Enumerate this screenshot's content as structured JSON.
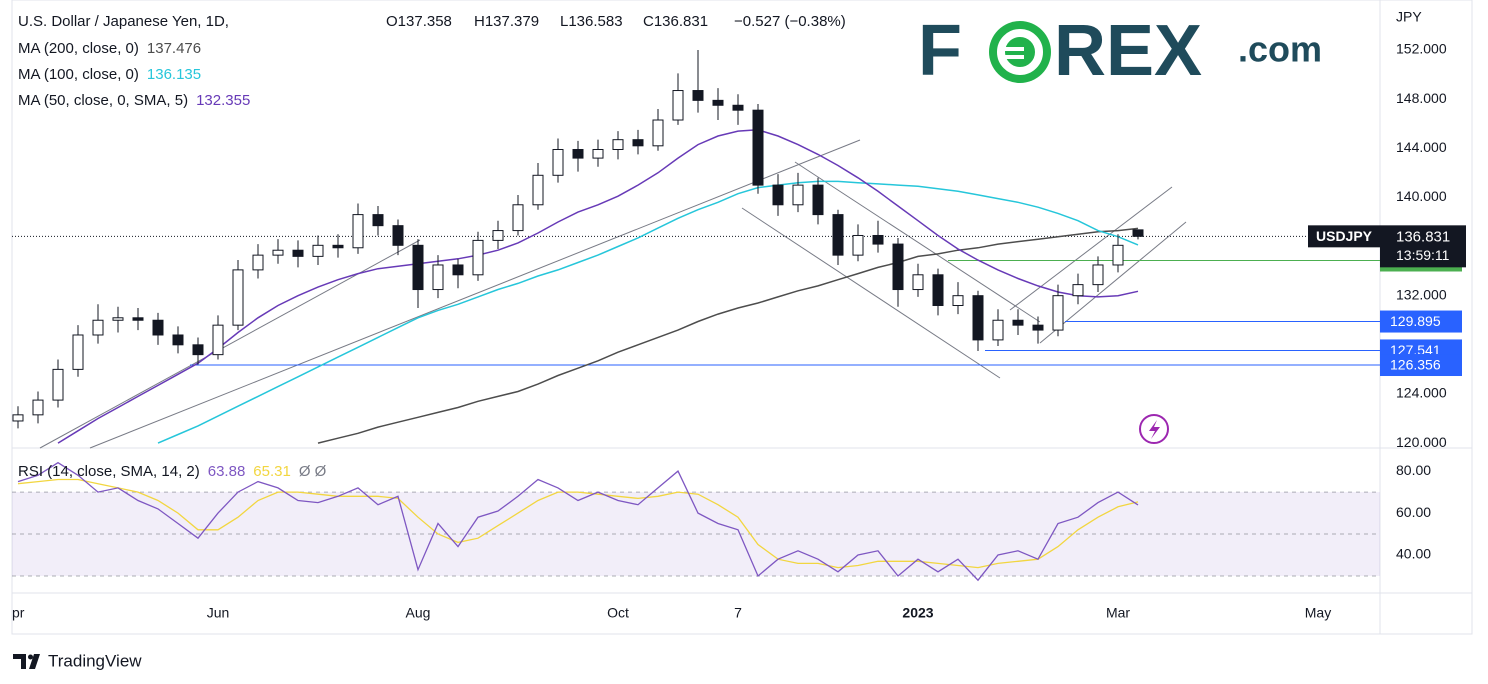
{
  "header": {
    "title": "U.S. Dollar / Japanese Yen, 1D, ",
    "open": "O137.358",
    "high": "H137.379",
    "low": "L136.583",
    "close": "C136.831",
    "change": "−0.527 (−0.38%)"
  },
  "logo": {
    "left": "F",
    "right": "REX",
    "suffix": ".com"
  },
  "branding": "TradingView",
  "chart_data": [
    {
      "type": "candlestick",
      "currency": "JPY",
      "symbol": "USDJPY",
      "countdown": "13:59:11",
      "categories": [
        "pr",
        null,
        null,
        null,
        null,
        null,
        null,
        null,
        null,
        null,
        "Jun",
        null,
        null,
        null,
        null,
        null,
        null,
        null,
        null,
        null,
        "Aug",
        null,
        null,
        null,
        null,
        null,
        null,
        null,
        null,
        null,
        "Oct",
        null,
        null,
        null,
        null,
        null,
        "7",
        null,
        null,
        null,
        null,
        null,
        null,
        null,
        null,
        "2023",
        null,
        null,
        null,
        null,
        null,
        null,
        null,
        null,
        null,
        "Mar",
        null,
        null,
        null,
        null,
        null,
        null,
        null,
        null,
        null,
        "May"
      ],
      "open": [
        121.8,
        122.3,
        123.5,
        126.0,
        128.8,
        130.0,
        130.2,
        130.0,
        128.8,
        128.0,
        127.2,
        129.6,
        134.1,
        135.3,
        135.7,
        135.2,
        136.1,
        135.9,
        138.6,
        137.7,
        136.1,
        132.5,
        134.5,
        133.7,
        136.5,
        137.3,
        139.4,
        141.8,
        143.9,
        143.2,
        143.9,
        144.7,
        144.2,
        146.3,
        148.7,
        147.9,
        147.5,
        147.1,
        141.0,
        139.4,
        141.0,
        138.6,
        135.3,
        136.9,
        136.2,
        132.5,
        133.7,
        131.2,
        132.0,
        128.4,
        130.0,
        129.6,
        129.2,
        132.0,
        132.9,
        134.5,
        137.358,
        null,
        null,
        null,
        null,
        null,
        null,
        null,
        null,
        null
      ],
      "high": [
        123.0,
        124.2,
        126.8,
        129.6,
        131.3,
        131.1,
        131.0,
        130.6,
        129.5,
        128.6,
        130.4,
        134.9,
        136.2,
        136.6,
        136.5,
        136.9,
        137.0,
        139.5,
        139.3,
        138.2,
        136.6,
        135.3,
        135.0,
        137.2,
        138.1,
        140.2,
        142.8,
        144.8,
        144.6,
        144.7,
        145.4,
        145.5,
        147.2,
        150.1,
        152.0,
        148.9,
        148.4,
        147.6,
        141.9,
        142.0,
        141.6,
        139.0,
        137.8,
        138.1,
        136.7,
        134.6,
        134.2,
        133.1,
        132.4,
        130.9,
        130.9,
        130.3,
        132.9,
        133.8,
        135.2,
        137.0,
        137.379,
        null,
        null,
        null,
        null,
        null,
        null,
        null,
        null,
        null
      ],
      "low": [
        121.2,
        121.6,
        122.9,
        125.4,
        128.1,
        129.0,
        129.2,
        128.0,
        127.3,
        126.4,
        126.8,
        129.2,
        133.4,
        134.6,
        134.3,
        134.5,
        135.1,
        135.4,
        136.9,
        135.3,
        131.0,
        131.8,
        132.6,
        133.2,
        135.8,
        136.9,
        139.0,
        141.2,
        142.1,
        142.5,
        143.1,
        143.5,
        143.8,
        145.9,
        146.9,
        146.3,
        145.9,
        140.3,
        138.5,
        138.8,
        137.8,
        134.5,
        134.8,
        135.5,
        131.1,
        131.9,
        130.4,
        130.5,
        127.5,
        127.9,
        128.8,
        128.1,
        128.7,
        131.3,
        132.3,
        133.9,
        136.583,
        null,
        null,
        null,
        null,
        null,
        null,
        null,
        null,
        null
      ],
      "close": [
        122.3,
        123.5,
        126.0,
        128.8,
        130.0,
        130.2,
        130.0,
        128.8,
        128.0,
        127.2,
        129.6,
        134.1,
        135.3,
        135.7,
        135.2,
        136.1,
        135.9,
        138.6,
        137.7,
        136.1,
        132.5,
        134.5,
        133.7,
        136.5,
        137.3,
        139.4,
        141.8,
        143.9,
        143.2,
        143.9,
        144.7,
        144.2,
        146.3,
        148.7,
        147.9,
        147.5,
        147.1,
        141.0,
        139.4,
        141.0,
        138.6,
        135.3,
        136.9,
        136.2,
        132.5,
        133.7,
        131.2,
        132.0,
        128.4,
        130.0,
        129.6,
        129.2,
        132.0,
        132.9,
        134.5,
        136.1,
        136.831,
        null,
        null,
        null,
        null,
        null,
        null,
        null,
        null,
        null
      ],
      "up_color": "#ffffff",
      "down_color": "#131722",
      "series": [
        {
          "name": "MA (200, close, 0)",
          "color": "#4d4d4d",
          "values": [
            null,
            null,
            null,
            null,
            null,
            null,
            null,
            null,
            null,
            null,
            null,
            null,
            null,
            null,
            null,
            120.0,
            120.4,
            120.8,
            121.3,
            121.7,
            122.1,
            122.5,
            122.9,
            123.4,
            123.8,
            124.2,
            124.8,
            125.5,
            126.1,
            126.7,
            127.4,
            128.0,
            128.6,
            129.2,
            129.9,
            130.5,
            131.0,
            131.4,
            131.9,
            132.4,
            132.8,
            133.3,
            133.8,
            134.3,
            134.7,
            135.2,
            135.4,
            135.7,
            135.9,
            136.2,
            136.4,
            136.6,
            136.8,
            137.0,
            137.2,
            137.3,
            137.476,
            null,
            null,
            null,
            null,
            null,
            null,
            null,
            null,
            null
          ]
        },
        {
          "name": "MA (100, close, 0)",
          "color": "#26c6da",
          "values": [
            null,
            null,
            null,
            null,
            null,
            null,
            null,
            120.0,
            120.7,
            121.4,
            122.2,
            123.0,
            123.8,
            124.6,
            125.4,
            126.2,
            127.0,
            127.8,
            128.6,
            129.4,
            130.2,
            130.8,
            131.3,
            131.9,
            132.5,
            133.0,
            133.6,
            134.1,
            134.7,
            135.3,
            136.0,
            136.7,
            137.5,
            138.3,
            139.0,
            139.6,
            140.3,
            140.8,
            141.0,
            141.2,
            141.3,
            141.3,
            141.2,
            141.1,
            141.0,
            140.9,
            140.7,
            140.5,
            140.2,
            139.9,
            139.6,
            139.2,
            138.7,
            138.1,
            137.3,
            136.8,
            136.135,
            null,
            null,
            null,
            null,
            null,
            null,
            null,
            null,
            null
          ]
        },
        {
          "name": "MA (50, close, 0, SMA, 5)",
          "color": "#673ab7",
          "values": [
            null,
            null,
            120.0,
            121.0,
            122.0,
            122.9,
            123.8,
            124.7,
            125.6,
            126.5,
            127.7,
            129.0,
            130.2,
            131.2,
            132.0,
            132.7,
            133.3,
            133.8,
            134.2,
            134.4,
            134.6,
            134.8,
            135.0,
            135.3,
            135.7,
            136.3,
            137.1,
            138.0,
            138.8,
            139.4,
            140.1,
            141.0,
            142.0,
            143.2,
            144.3,
            145.0,
            145.4,
            145.5,
            145.0,
            144.3,
            143.5,
            142.6,
            141.6,
            140.5,
            139.3,
            138.1,
            136.9,
            135.8,
            134.9,
            134.1,
            133.4,
            132.8,
            132.3,
            132.0,
            131.9,
            132.0,
            132.355,
            null,
            null,
            null,
            null,
            null,
            null,
            null,
            null,
            null
          ]
        }
      ],
      "ylim": [
        119.6,
        156.07
      ],
      "yticks": [
        {
          "value": 152,
          "label": "152.000"
        },
        {
          "value": 148,
          "label": "148.000"
        },
        {
          "value": 144,
          "label": "144.000"
        },
        {
          "value": 140,
          "label": "140.000"
        },
        {
          "value": 132,
          "label": "132.000"
        },
        {
          "value": 124,
          "label": "124.000"
        },
        {
          "value": 120,
          "label": "120.000"
        }
      ],
      "grid": false,
      "levels": [
        {
          "value": 134.864,
          "color": "#4caf50"
        },
        {
          "value": 129.895,
          "color": "#2962ff"
        },
        {
          "value": 127.541,
          "color": "#2962ff"
        },
        {
          "value": 126.356,
          "color": "#2962ff"
        }
      ]
    },
    {
      "type": "line",
      "title": "RSI (14, close, SMA, 14, 2)",
      "extra": "Ø  Ø",
      "series": [
        {
          "name": "RSI",
          "color": "#7e57c2",
          "values": [
            75,
            78,
            84,
            78,
            70,
            72,
            66,
            62,
            55,
            48,
            60,
            70,
            75,
            72,
            66,
            65,
            68,
            72,
            64,
            68,
            33,
            55,
            44,
            58,
            61,
            68,
            76,
            72,
            66,
            70,
            66,
            64,
            72,
            80,
            60,
            55,
            52,
            30,
            38,
            42,
            38,
            32,
            40,
            42,
            30,
            38,
            32,
            38,
            28,
            40,
            42,
            38,
            55,
            58,
            65,
            70,
            63.88,
            null,
            null,
            null,
            null,
            null,
            null,
            null,
            null,
            null
          ]
        },
        {
          "name": "SMA",
          "color": "#f2d640",
          "values": [
            74,
            75,
            76,
            76,
            74,
            72,
            70,
            66,
            60,
            52,
            52,
            58,
            66,
            70,
            70,
            69,
            68,
            68,
            68,
            67,
            58,
            50,
            46,
            48,
            54,
            60,
            66,
            70,
            70,
            69,
            68,
            67,
            68,
            70,
            69,
            64,
            58,
            45,
            38,
            36,
            36,
            34,
            35,
            37,
            37,
            37,
            36,
            35,
            34,
            36,
            37,
            38,
            44,
            52,
            58,
            63,
            65.31,
            null,
            null,
            null,
            null,
            null,
            null,
            null,
            null,
            null
          ]
        }
      ],
      "ylim": [
        21.9,
        91
      ],
      "yticks": [
        {
          "value": 80,
          "label": "80.00"
        },
        {
          "value": 60,
          "label": "60.00"
        },
        {
          "value": 40,
          "label": "40.00"
        }
      ],
      "bands": [
        70,
        50,
        30
      ]
    }
  ]
}
